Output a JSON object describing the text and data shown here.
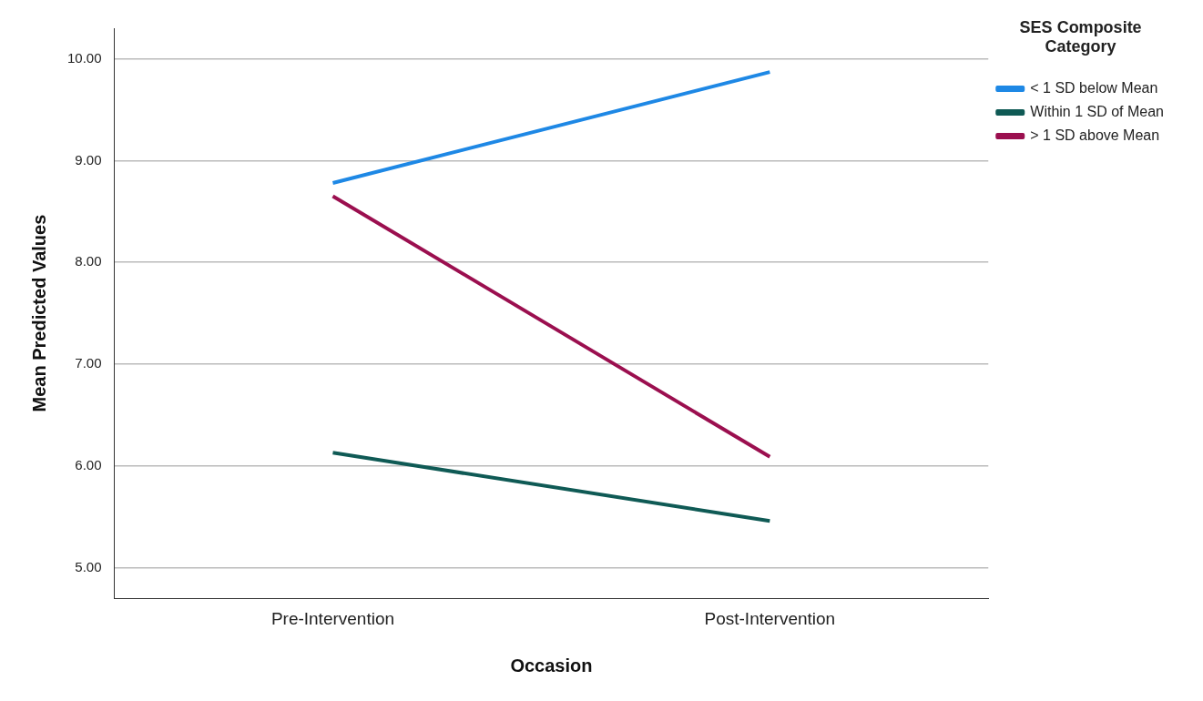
{
  "chart_data": {
    "type": "line",
    "xlabel": "Occasion",
    "ylabel": "Mean Predicted Values",
    "legend_title": "SES Composite Category",
    "categories": [
      "Pre-Intervention",
      "Post-Intervention"
    ],
    "series": [
      {
        "name": "< 1 SD below Mean",
        "color": "#1e88e5",
        "values": [
          8.78,
          9.87
        ]
      },
      {
        "name": "Within 1 SD of Mean",
        "color": "#0f5a55",
        "values": [
          6.13,
          5.46
        ]
      },
      {
        "name": "> 1 SD above Mean",
        "color": "#9b0f4f",
        "values": [
          8.65,
          6.09
        ]
      }
    ],
    "ylim": [
      4.7,
      10.3
    ],
    "yticks": [
      {
        "value": 5,
        "label": "5.00"
      },
      {
        "value": 6,
        "label": "6.00"
      },
      {
        "value": 7,
        "label": "7.00"
      },
      {
        "value": 8,
        "label": "8.00"
      },
      {
        "value": 9,
        "label": "9.00"
      },
      {
        "value": 10,
        "label": "10.00"
      }
    ],
    "grid": "y",
    "legend": "top right",
    "marker": "none",
    "line_style": "solid"
  }
}
